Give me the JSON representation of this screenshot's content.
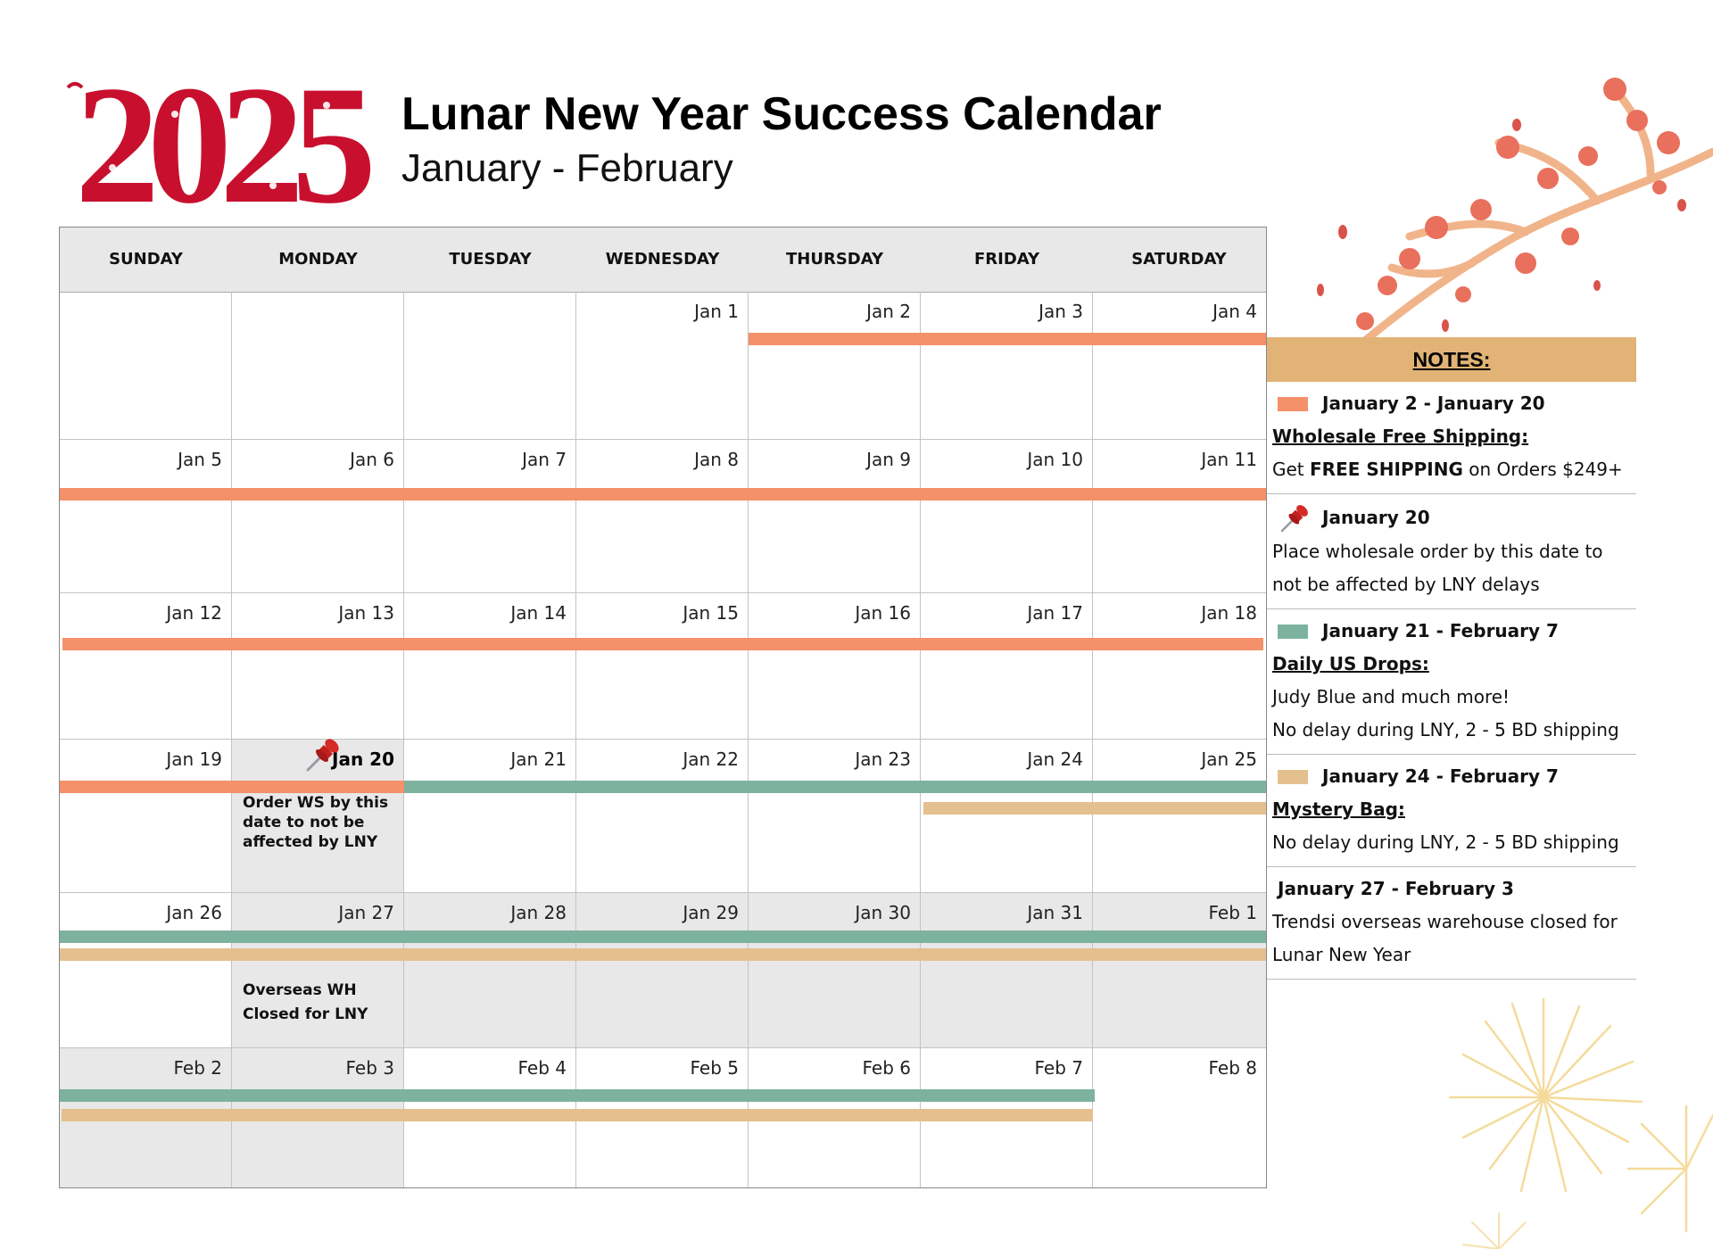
{
  "header": {
    "logo_year": "2025",
    "title": "Lunar New Year Success Calendar",
    "subtitle": "January - February"
  },
  "calendar": {
    "weekdays": [
      "SUNDAY",
      "MONDAY",
      "TUESDAY",
      "WEDNESDAY",
      "THURSDAY",
      "FRIDAY",
      "SATURDAY"
    ],
    "weeks": [
      [
        "",
        "",
        "",
        "Jan 1",
        "Jan 2",
        "Jan 3",
        "Jan 4"
      ],
      [
        "Jan 5",
        "Jan 6",
        "Jan 7",
        "Jan 8",
        "Jan 9",
        "Jan 10",
        "Jan 11"
      ],
      [
        "Jan 12",
        "Jan 13",
        "Jan 14",
        "Jan 15",
        "Jan 16",
        "Jan 17",
        "Jan 18"
      ],
      [
        "Jan 19",
        "Jan 20",
        "Jan 21",
        "Jan 22",
        "Jan 23",
        "Jan 24",
        "Jan 25"
      ],
      [
        "Jan 26",
        "Jan 27",
        "Jan 28",
        "Jan 29",
        "Jan 30",
        "Jan 31",
        "Feb 1"
      ],
      [
        "Feb 2",
        "Feb 3",
        "Feb 4",
        "Feb 5",
        "Feb 6",
        "Feb 7",
        "Feb 8"
      ]
    ],
    "cell_notes": {
      "jan20": "Order WS by this date to not be affected by LNY",
      "jan27": "Overseas WH Closed for LNY"
    }
  },
  "notes": {
    "heading": "NOTES:",
    "items": [
      {
        "range": "January 2 - January 20",
        "title": "Wholesale Free Shipping:",
        "text_pre": "Get ",
        "text_bold": "FREE SHIPPING",
        "text_post": " on Orders $249+",
        "color": "#f4906a"
      },
      {
        "range": "January 20",
        "text": "Place wholesale order by this date to not be affected by LNY delays",
        "icon": "pushpin-icon"
      },
      {
        "range": "January 21 - February 7",
        "title": "Daily US Drops:",
        "line1": "Judy Blue and much more!",
        "line2": "No delay during LNY, 2 - 5 BD shipping",
        "color": "#7db29e"
      },
      {
        "range": "January 24 - February 7",
        "title": "Mystery Bag:",
        "text": "No delay during LNY, 2 - 5 BD shipping",
        "color": "#e4c08e"
      },
      {
        "range": "January 27 - February 3",
        "text": "Trendsi overseas warehouse closed for Lunar New Year"
      }
    ]
  },
  "colors": {
    "accent_red": "#c8102e",
    "free_shipping": "#f4906a",
    "us_drops": "#7db29e",
    "mystery_bag": "#e4c08e",
    "notes_header": "#e2b376",
    "closed_shade": "#e8e8e8"
  }
}
